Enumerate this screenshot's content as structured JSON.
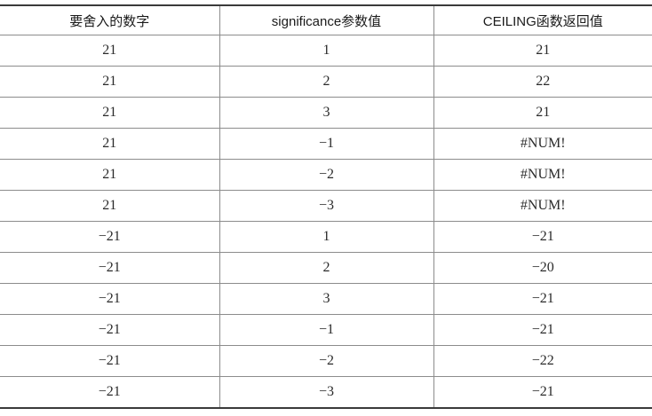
{
  "table": {
    "headers": [
      "要舍入的数字",
      "significance参数值",
      "CEILING函数返回值"
    ],
    "rows": [
      [
        "21",
        "1",
        "21"
      ],
      [
        "21",
        "2",
        "22"
      ],
      [
        "21",
        "3",
        "21"
      ],
      [
        "21",
        "−1",
        "#NUM!"
      ],
      [
        "21",
        "−2",
        "#NUM!"
      ],
      [
        "21",
        "−3",
        "#NUM!"
      ],
      [
        "−21",
        "1",
        "−21"
      ],
      [
        "−21",
        "2",
        "−20"
      ],
      [
        "−21",
        "3",
        "−21"
      ],
      [
        "−21",
        "−1",
        "−21"
      ],
      [
        "−21",
        "−2",
        "−22"
      ],
      [
        "−21",
        "−3",
        "−21"
      ]
    ]
  },
  "chart_data": {
    "type": "table",
    "columns": [
      "要舍入的数字",
      "significance参数值",
      "CEILING函数返回值"
    ],
    "rows": [
      [
        "21",
        "1",
        "21"
      ],
      [
        "21",
        "2",
        "22"
      ],
      [
        "21",
        "3",
        "21"
      ],
      [
        "21",
        "−1",
        "#NUM!"
      ],
      [
        "21",
        "−2",
        "#NUM!"
      ],
      [
        "21",
        "−3",
        "#NUM!"
      ],
      [
        "−21",
        "1",
        "−21"
      ],
      [
        "−21",
        "2",
        "−20"
      ],
      [
        "−21",
        "3",
        "−21"
      ],
      [
        "−21",
        "−1",
        "−21"
      ],
      [
        "−21",
        "−2",
        "−22"
      ],
      [
        "−21",
        "−3",
        "−21"
      ]
    ]
  },
  "colors": {
    "outer_border": "#3a3a3a",
    "inner_border": "#8c8c8c",
    "header_text": "#1a1a1a",
    "cell_text": "#2a2a2a",
    "background": "#ffffff"
  }
}
